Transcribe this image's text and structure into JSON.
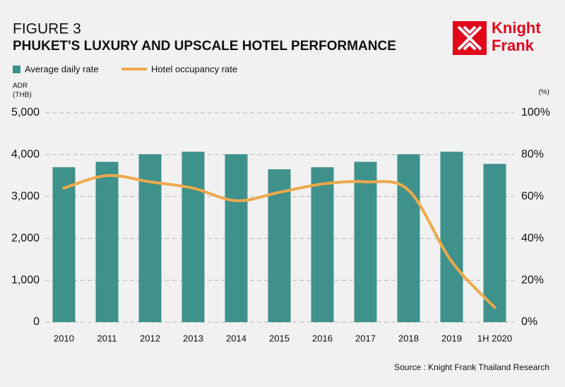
{
  "chart_data": {
    "type": "bar_line",
    "title": "FIGURE 3",
    "subtitle": "PHUKET'S LUXURY AND UPSCALE HOTEL PERFORMANCE",
    "logo": [
      "Knight",
      "Frank"
    ],
    "ylabel": [
      "ADR",
      "(THB)"
    ],
    "y2label": "(%)",
    "source": "Source : Knight Frank Thailand Research",
    "categories": [
      "2010",
      "2011",
      "2012",
      "2013",
      "2014",
      "2015",
      "2016",
      "2017",
      "2018",
      "2019",
      "1H 2020"
    ],
    "series": [
      {
        "name": "Average daily rate",
        "type": "bar",
        "color": "#3f918b",
        "values": [
          3700,
          3830,
          4010,
          4070,
          4010,
          3650,
          3700,
          3830,
          4010,
          4070,
          3780
        ]
      },
      {
        "name": "Hotel occupancy rate",
        "type": "line",
        "axis": "y2",
        "color": "#efa94a",
        "values": [
          64,
          70,
          67,
          64,
          58,
          62,
          66,
          67,
          63,
          29,
          7
        ]
      }
    ],
    "ylim": [
      0,
      5000
    ],
    "yticks": [
      0,
      {
        "value": 1000,
        "label": "1,000"
      },
      {
        "value": 2000,
        "label": "2,000"
      },
      {
        "value": 3000,
        "label": "3,000"
      },
      {
        "value": 4000,
        "label": "4,000"
      },
      {
        "value": 5000,
        "label": "5,000"
      }
    ],
    "y2lim": [
      0,
      100
    ],
    "y2ticks": [
      {
        "value": 0,
        "label": "0%"
      },
      {
        "value": 20,
        "label": "20%"
      },
      {
        "value": 40,
        "label": "40%"
      },
      {
        "value": 60,
        "label": "60%"
      },
      {
        "value": 80,
        "label": "80%"
      },
      {
        "value": 100,
        "label": "100%"
      }
    ],
    "grid": true,
    "legend": "top-left"
  }
}
